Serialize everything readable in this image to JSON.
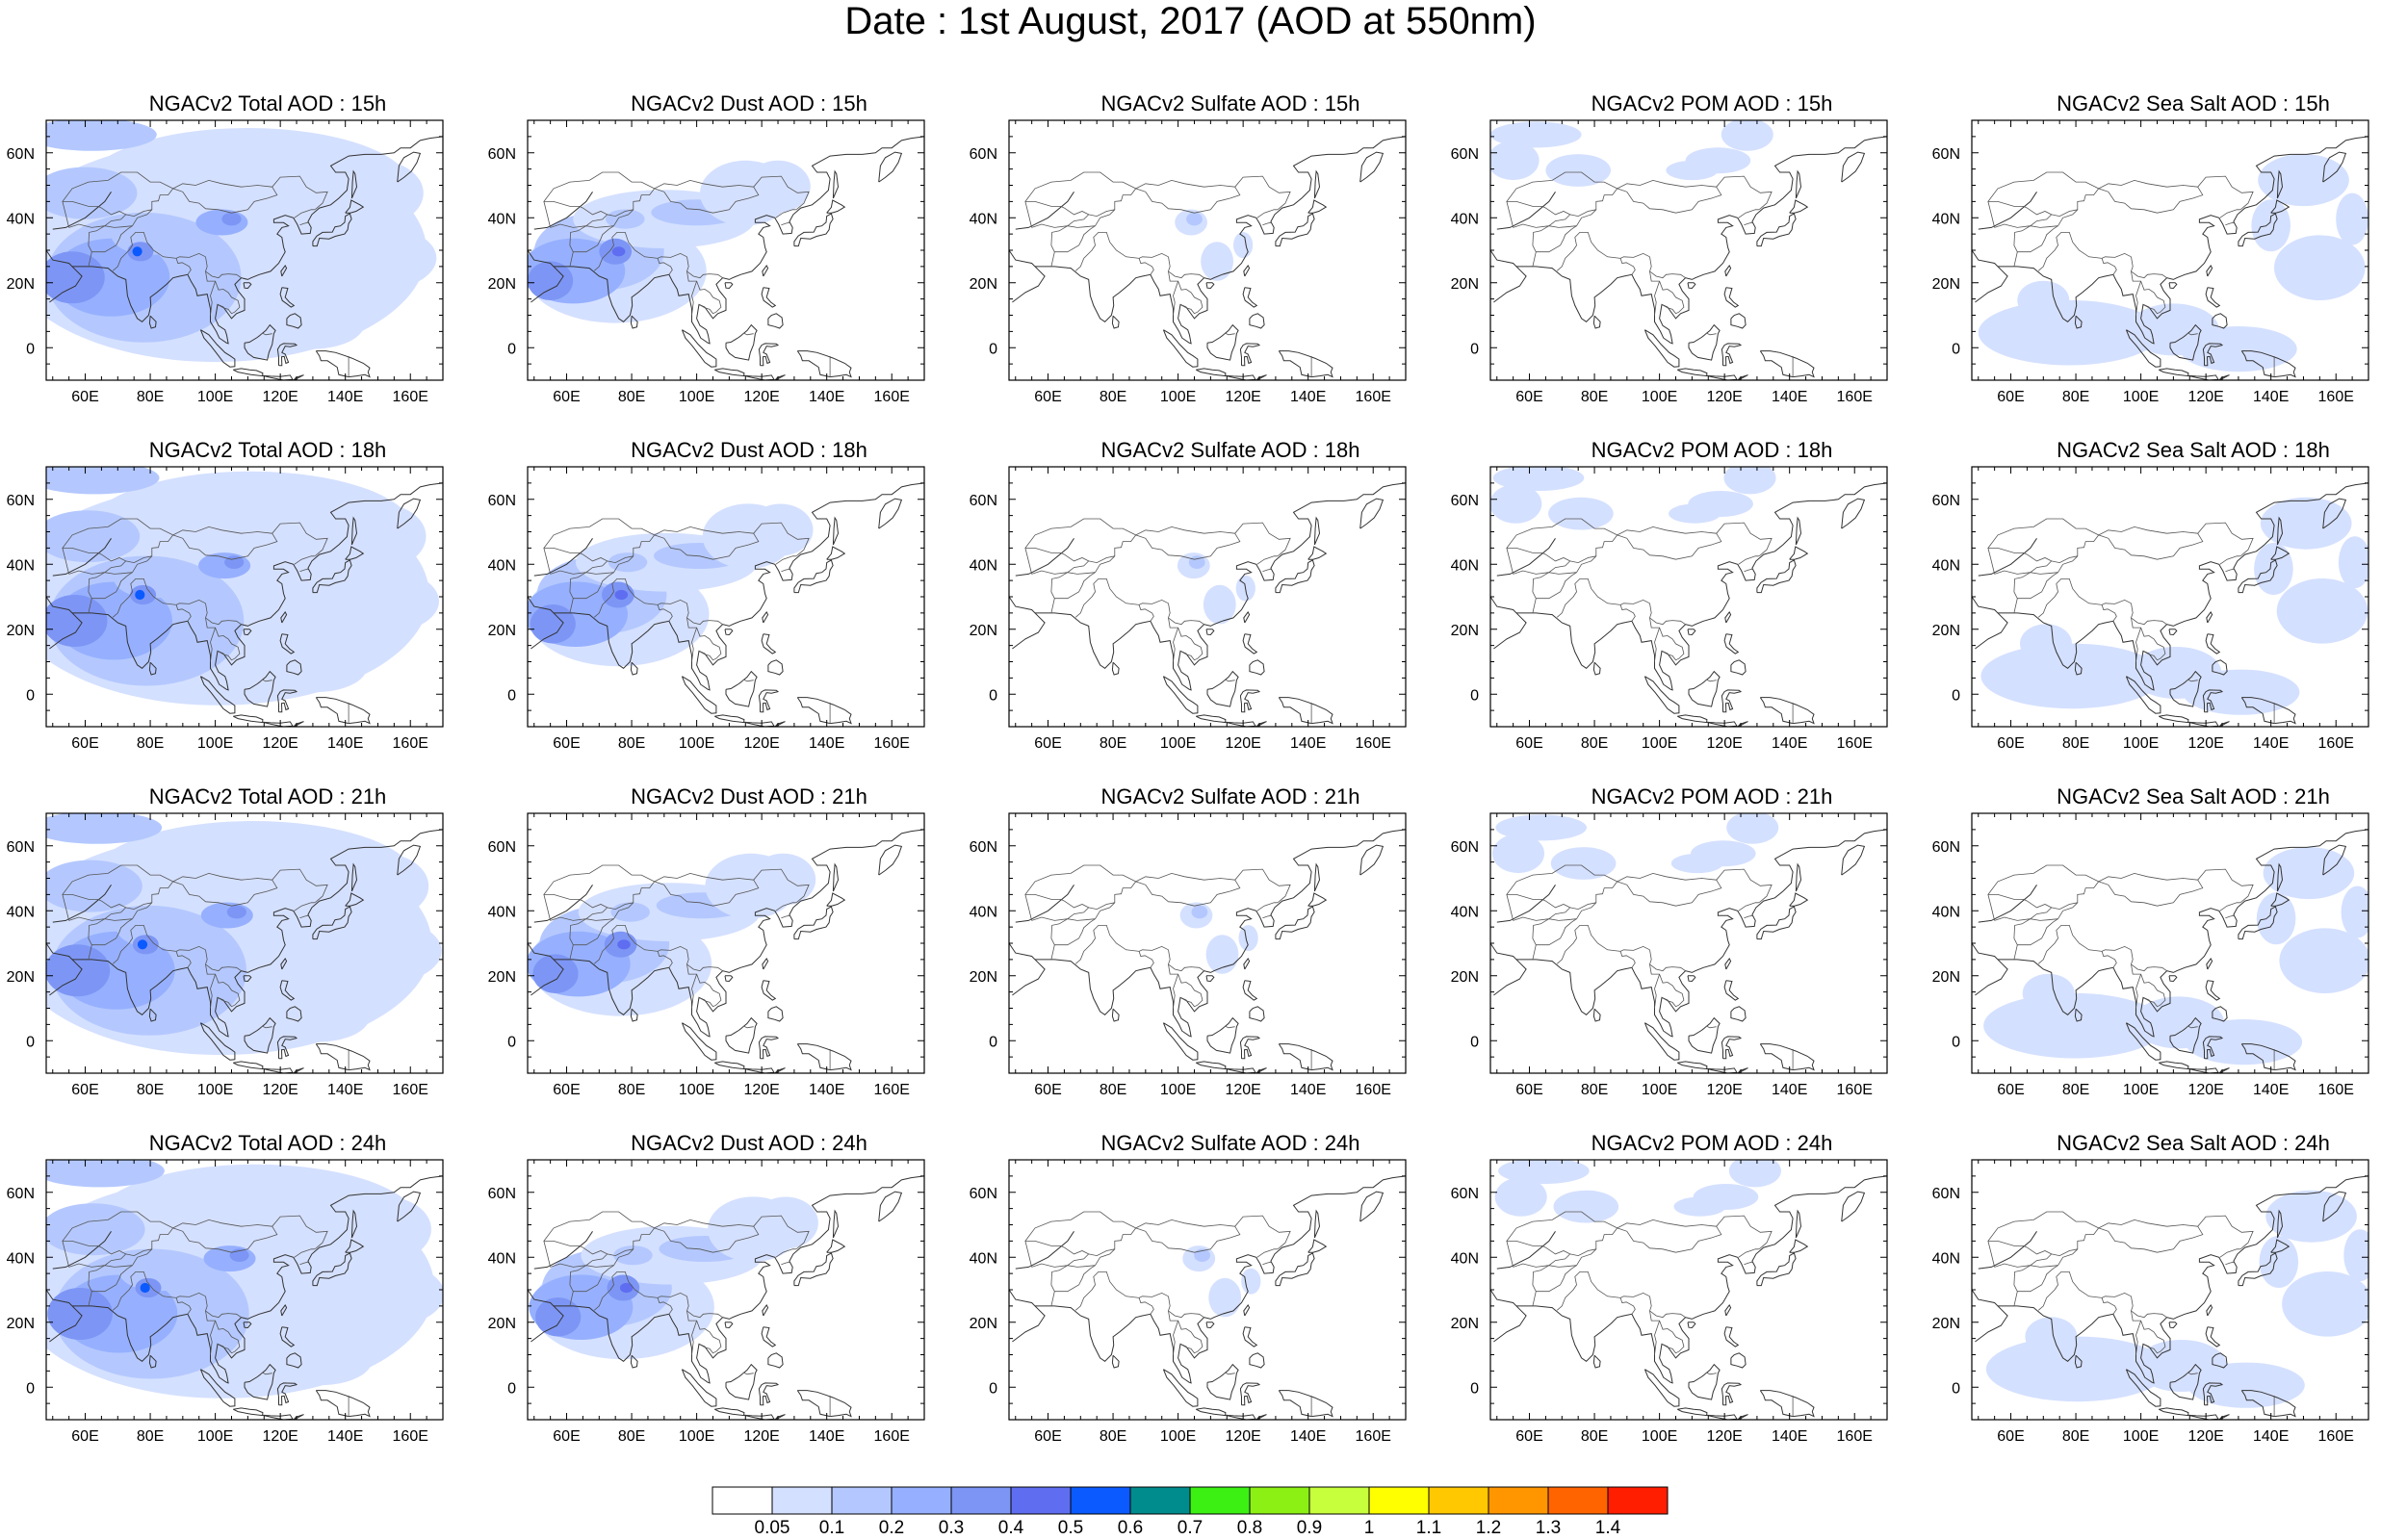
{
  "title": "Date : 1st August, 2017 (AOD at 550nm)",
  "map_axes": {
    "lon_range": [
      48,
      170
    ],
    "lat_range": [
      -10,
      70
    ],
    "lon_ticks": [
      "60E",
      "80E",
      "100E",
      "120E",
      "140E",
      "160E"
    ],
    "lon_tick_values": [
      60,
      80,
      100,
      120,
      140,
      160
    ],
    "lat_ticks": [
      "0",
      "20N",
      "40N",
      "60N"
    ],
    "lat_tick_values": [
      0,
      20,
      40,
      60
    ]
  },
  "panels": [
    {
      "title": "NGACv2 Total AOD : 15h",
      "species": "total",
      "hour": 15
    },
    {
      "title": "NGACv2 Dust AOD : 15h",
      "species": "dust",
      "hour": 15
    },
    {
      "title": "NGACv2 Sulfate AOD : 15h",
      "species": "sulfate",
      "hour": 15
    },
    {
      "title": "NGACv2 POM AOD : 15h",
      "species": "pom",
      "hour": 15
    },
    {
      "title": "NGACv2 Sea Salt AOD : 15h",
      "species": "seasalt",
      "hour": 15
    },
    {
      "title": "NGACv2 Total AOD : 18h",
      "species": "total",
      "hour": 18
    },
    {
      "title": "NGACv2 Dust AOD : 18h",
      "species": "dust",
      "hour": 18
    },
    {
      "title": "NGACv2 Sulfate AOD : 18h",
      "species": "sulfate",
      "hour": 18
    },
    {
      "title": "NGACv2 POM AOD : 18h",
      "species": "pom",
      "hour": 18
    },
    {
      "title": "NGACv2 Sea Salt AOD : 18h",
      "species": "seasalt",
      "hour": 18
    },
    {
      "title": "NGACv2 Total AOD : 21h",
      "species": "total",
      "hour": 21
    },
    {
      "title": "NGACv2 Dust AOD : 21h",
      "species": "dust",
      "hour": 21
    },
    {
      "title": "NGACv2 Sulfate AOD : 21h",
      "species": "sulfate",
      "hour": 21
    },
    {
      "title": "NGACv2 POM AOD : 21h",
      "species": "pom",
      "hour": 21
    },
    {
      "title": "NGACv2 Sea Salt AOD : 21h",
      "species": "seasalt",
      "hour": 21
    },
    {
      "title": "NGACv2 Total AOD : 24h",
      "species": "total",
      "hour": 24
    },
    {
      "title": "NGACv2 Dust AOD : 24h",
      "species": "dust",
      "hour": 24
    },
    {
      "title": "NGACv2 Sulfate AOD : 24h",
      "species": "sulfate",
      "hour": 24
    },
    {
      "title": "NGACv2 POM AOD : 24h",
      "species": "pom",
      "hour": 24
    },
    {
      "title": "NGACv2 Sea Salt  AOD : 24h",
      "species": "seasalt",
      "hour": 24
    }
  ],
  "colorbar": {
    "labels": [
      "0.05",
      "0.1",
      "0.2",
      "0.3",
      "0.4",
      "0.5",
      "0.6",
      "0.7",
      "0.8",
      "0.9",
      "1",
      "1.1",
      "1.2",
      "1.3",
      "1.4"
    ],
    "colors": [
      "#ffffff",
      "#d4e0ff",
      "#b4c8ff",
      "#96b0ff",
      "#7d96f5",
      "#5f6ef0",
      "#0a5aff",
      "#008c8c",
      "#3cf014",
      "#8cf014",
      "#c8ff3c",
      "#ffff00",
      "#ffc800",
      "#ff9600",
      "#ff6400",
      "#ff1e00"
    ]
  }
}
